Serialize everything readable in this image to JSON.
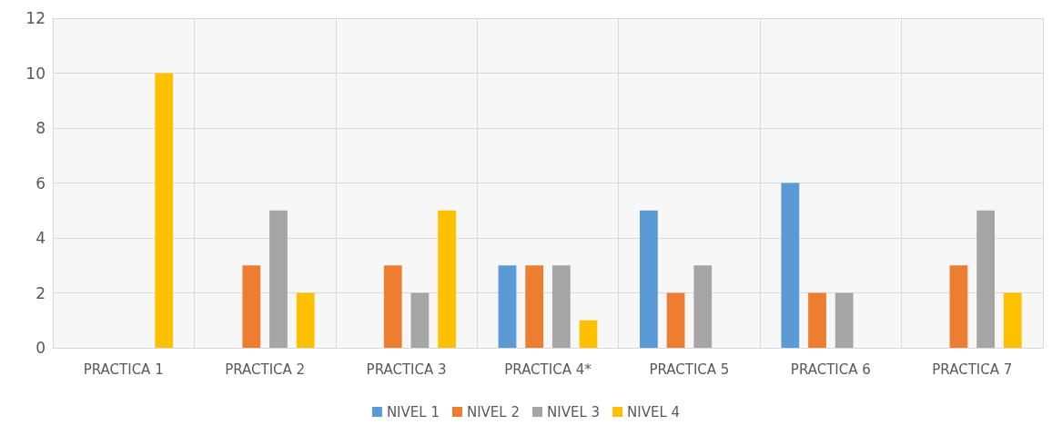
{
  "chart_data": {
    "type": "bar",
    "categories": [
      "PRACTICA 1",
      "PRACTICA 2",
      "PRACTICA 3",
      "PRACTICA 4*",
      "PRACTICA 5",
      "PRACTICA 6",
      "PRACTICA 7"
    ],
    "series": [
      {
        "name": "NIVEL 1",
        "color": "#5b9bd5",
        "values": [
          0,
          0,
          0,
          3,
          5,
          6,
          0
        ]
      },
      {
        "name": "NIVEL 2",
        "color": "#ed7d31",
        "values": [
          0,
          3,
          3,
          3,
          2,
          2,
          3
        ]
      },
      {
        "name": "NIVEL 3",
        "color": "#a5a5a5",
        "values": [
          0,
          5,
          2,
          3,
          3,
          2,
          5
        ]
      },
      {
        "name": "NIVEL 4",
        "color": "#ffc000",
        "values": [
          10,
          2,
          5,
          1,
          0,
          0,
          2
        ]
      }
    ],
    "ylim": [
      0,
      12
    ],
    "yticks": [
      0,
      2,
      4,
      6,
      8,
      10,
      12
    ],
    "grid": true,
    "legend": "bottom"
  }
}
